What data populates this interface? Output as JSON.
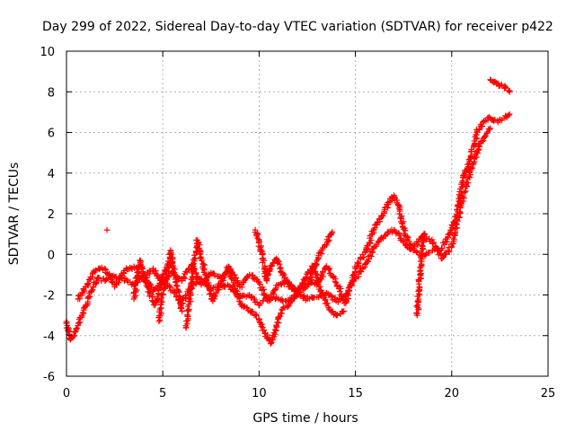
{
  "chart_data": {
    "type": "scatter",
    "title": "Day 299 of 2022, Sidereal Day-to-day VTEC variation (SDTVAR) for receiver p422",
    "xlabel": "GPS time / hours",
    "ylabel": "SDTVAR / TECUs",
    "xlim": [
      0,
      25
    ],
    "ylim": [
      -6,
      10
    ],
    "xticks": [
      "0",
      "5",
      "10",
      "15",
      "20",
      "25"
    ],
    "yticks": [
      "-6",
      "-4",
      "-2",
      "0",
      "2",
      "4",
      "6",
      "8",
      "10"
    ],
    "grid": true,
    "marker": "+",
    "series": [
      {
        "name": "SDTVAR",
        "color": "#ff0000",
        "segments": [
          {
            "x": [
              0.0,
              0.2,
              0.4,
              0.6,
              0.8,
              1.0,
              1.3,
              1.6,
              2.0,
              2.5,
              3.0,
              3.5,
              4.0,
              4.5,
              5.0,
              5.5,
              6.0,
              6.5,
              7.0,
              7.5,
              8.0,
              8.5,
              9.0,
              9.5,
              10.0,
              10.5,
              11.0,
              11.5,
              12.0,
              12.5,
              13.0,
              13.5,
              14.0,
              14.5,
              15.0,
              15.5,
              16.0,
              16.5,
              17.0,
              17.5,
              18.0,
              18.5,
              19.0,
              19.5,
              20.0,
              20.3,
              20.6,
              21.0,
              21.3,
              21.6,
              22.0,
              22.4,
              22.8,
              23.0
            ],
            "y": [
              -3.3,
              -4.2,
              -4.0,
              -3.5,
              -3.0,
              -2.5,
              -1.8,
              -1.2,
              -1.3,
              -1.1,
              -1.2,
              -1.5,
              -1.0,
              -1.8,
              -1.3,
              -1.8,
              -2.4,
              -1.5,
              -1.2,
              -1.8,
              -1.5,
              -1.6,
              -2.1,
              -2.0,
              -2.5,
              -2.1,
              -2.2,
              -2.3,
              -2.0,
              -2.2,
              -2.1,
              -1.9,
              -2.3,
              -2.0,
              -1.2,
              -0.5,
              0.4,
              0.9,
              1.2,
              0.6,
              0.2,
              -0.1,
              0.2,
              0.3,
              1.2,
              2.2,
              3.8,
              4.8,
              6.0,
              6.5,
              6.7,
              6.5,
              6.8,
              6.9
            ]
          },
          {
            "x": [
              0.6,
              1.0,
              1.5,
              2.0,
              2.5,
              3.0,
              3.5,
              4.0,
              4.5,
              5.0,
              5.5,
              6.0,
              6.5,
              7.0,
              7.5,
              8.0,
              8.5,
              9.0,
              9.5,
              10.0,
              10.5,
              11.0,
              11.5,
              12.0,
              12.5,
              13.0,
              13.5,
              14.0,
              14.5,
              15.0,
              15.5,
              16.0,
              16.5,
              17.0,
              17.3,
              17.6,
              18.0,
              18.5,
              19.0,
              19.5,
              20.0,
              20.5,
              21.0,
              21.5,
              22.0
            ],
            "y": [
              -2.2,
              -1.6,
              -0.8,
              -0.7,
              -1.6,
              -0.8,
              -0.6,
              -1.2,
              -0.7,
              -1.4,
              -0.9,
              -1.3,
              -0.5,
              -1.5,
              -0.9,
              -1.2,
              -0.7,
              -1.6,
              -1.0,
              -1.4,
              -2.3,
              -1.5,
              -1.4,
              -1.9,
              -1.2,
              -1.5,
              -0.6,
              -1.4,
              -2.4,
              -0.7,
              0.1,
              1.3,
              2.1,
              2.9,
              2.2,
              0.9,
              0.3,
              0.9,
              0.6,
              -0.2,
              0.4,
              2.5,
              4.2,
              5.5,
              6.2
            ]
          },
          {
            "x": [
              6.2,
              6.4,
              6.6,
              6.8,
              7.2,
              7.6,
              8.0,
              8.4,
              8.8,
              9.2,
              9.6,
              10.0,
              10.3,
              10.6,
              10.9,
              11.2,
              11.6,
              12.0,
              12.4,
              12.8,
              13.2,
              13.6,
              14.0,
              14.4
            ],
            "y": [
              -3.6,
              -2.2,
              -0.6,
              0.7,
              -1.0,
              -2.3,
              -1.4,
              -0.6,
              -1.8,
              -2.6,
              -2.8,
              -3.2,
              -3.9,
              -4.4,
              -3.6,
              -2.7,
              -2.4,
              -1.8,
              -1.2,
              -0.6,
              -1.8,
              -2.6,
              -3.0,
              -2.8
            ]
          },
          {
            "x": [
              9.8,
              10.0,
              10.2,
              10.4,
              10.6,
              10.9,
              11.2,
              11.6,
              12.0,
              12.5,
              13.0,
              13.4,
              13.8
            ],
            "y": [
              1.2,
              0.6,
              -0.3,
              -1.3,
              -0.6,
              -0.2,
              -0.9,
              -1.6,
              -1.9,
              -1.6,
              -0.3,
              0.4,
              1.1
            ]
          },
          {
            "x": [
              3.5,
              3.8,
              4.2,
              4.6,
              5.0,
              5.5
            ],
            "y": [
              -2.2,
              -0.3,
              -1.6,
              -2.5,
              -1.0,
              -0.4
            ]
          },
          {
            "x": [
              4.8,
              5.0,
              5.2,
              5.4,
              5.6,
              5.8,
              6.0
            ],
            "y": [
              -3.3,
              -2.0,
              -1.2,
              0.2,
              -0.9,
              -1.8,
              -2.8
            ]
          },
          {
            "x": [
              18.2,
              18.3,
              18.4,
              18.5,
              18.6
            ],
            "y": [
              -3.0,
              -1.8,
              -0.6,
              0.6,
              1.0
            ]
          },
          {
            "x": [
              22.0,
              22.2,
              22.4,
              22.6,
              22.8,
              23.0
            ],
            "y": [
              8.6,
              8.5,
              8.4,
              8.3,
              8.2,
              8.0
            ]
          }
        ],
        "outliers": [
          {
            "x": 2.1,
            "y": 1.2
          }
        ]
      }
    ]
  }
}
